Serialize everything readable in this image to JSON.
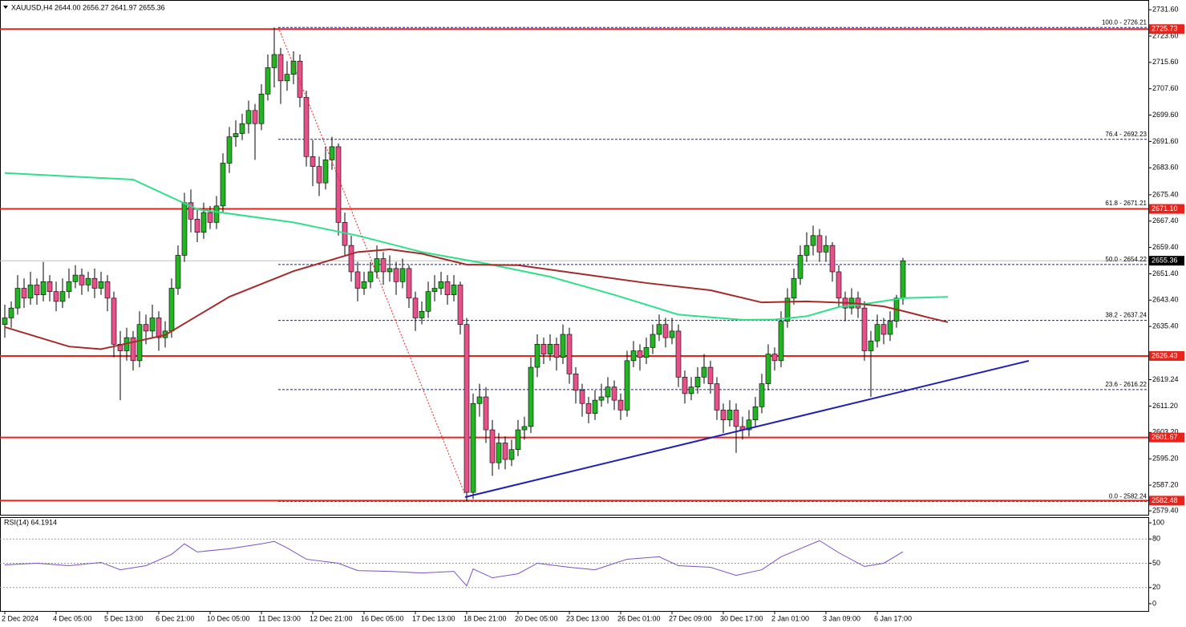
{
  "chart_data": {
    "type": "candlestick",
    "title": "XAUUSD,H4  2644.00 2656.27 2641.97 2655.36",
    "categories": [
      "2 Dec 2024",
      null,
      null,
      null,
      null,
      null,
      null,
      null,
      "4 Dec 05:00",
      null,
      null,
      null,
      null,
      null,
      null,
      null,
      "5 Dec 13:00",
      null,
      null,
      null,
      null,
      null,
      null,
      null,
      "6 Dec 21:00",
      null,
      null,
      null,
      null,
      null,
      null,
      null,
      "10 Dec 05:00",
      null,
      null,
      null,
      null,
      null,
      null,
      null,
      "11 Dec 13:00",
      null,
      null,
      null,
      null,
      null,
      null,
      null,
      "12 Dec 21:00",
      null,
      null,
      null,
      null,
      null,
      null,
      null,
      "16 Dec 05:00",
      null,
      null,
      null,
      null,
      null,
      null,
      null,
      "17 Dec 13:00",
      null,
      null,
      null,
      null,
      null,
      null,
      null,
      "18 Dec 21:00",
      null,
      null,
      null,
      null,
      null,
      null,
      null,
      "20 Dec 05:00",
      null,
      null,
      null,
      null,
      null,
      null,
      null,
      "23 Dec 13:00",
      null,
      null,
      null,
      null,
      null,
      null,
      null,
      "26 Dec 01:00",
      null,
      null,
      null,
      null,
      null,
      null,
      null,
      "27 Dec 09:00",
      null,
      null,
      null,
      null,
      null,
      null,
      null,
      "30 Dec 17:00",
      null,
      null,
      null,
      null,
      null,
      null,
      null,
      "2 Jan 01:00",
      null,
      null,
      null,
      null,
      null,
      null,
      null,
      "3 Jan 09:00",
      null,
      null,
      null,
      null,
      null,
      null,
      null,
      "6 Jan 17:00",
      null,
      null,
      null,
      null
    ],
    "candles": [
      [
        2636,
        2642,
        2632,
        2638
      ],
      [
        2638,
        2643,
        2635,
        2641
      ],
      [
        2641,
        2651,
        2639,
        2647
      ],
      [
        2647,
        2650,
        2641,
        2644
      ],
      [
        2644,
        2652,
        2642,
        2648
      ],
      [
        2648,
        2650,
        2642,
        2645
      ],
      [
        2645,
        2655,
        2643,
        2649
      ],
      [
        2649,
        2651,
        2643,
        2646
      ],
      [
        2646,
        2649,
        2640,
        2643
      ],
      [
        2643,
        2650,
        2641,
        2646
      ],
      [
        2646,
        2653,
        2644,
        2649
      ],
      [
        2649,
        2654,
        2647,
        2651
      ],
      [
        2651,
        2653,
        2645,
        2648
      ],
      [
        2648,
        2652,
        2646,
        2650
      ],
      [
        2650,
        2653,
        2644,
        2647
      ],
      [
        2647,
        2652,
        2645,
        2649
      ],
      [
        2649,
        2651,
        2640,
        2644
      ],
      [
        2644,
        2646,
        2626,
        2630
      ],
      [
        2630,
        2634,
        2613,
        2628
      ],
      [
        2628,
        2635,
        2625,
        2632
      ],
      [
        2632,
        2634,
        2622,
        2625
      ],
      [
        2625,
        2640,
        2623,
        2636
      ],
      [
        2636,
        2639,
        2630,
        2634
      ],
      [
        2634,
        2642,
        2632,
        2638
      ],
      [
        2638,
        2640,
        2628,
        2632
      ],
      [
        2632,
        2637,
        2629,
        2634
      ],
      [
        2634,
        2650,
        2632,
        2647
      ],
      [
        2647,
        2660,
        2645,
        2657
      ],
      [
        2657,
        2676,
        2655,
        2673
      ],
      [
        2673,
        2677,
        2664,
        2668
      ],
      [
        2668,
        2671,
        2661,
        2664
      ],
      [
        2664,
        2673,
        2662,
        2670
      ],
      [
        2670,
        2672,
        2665,
        2667
      ],
      [
        2667,
        2675,
        2665,
        2672
      ],
      [
        2672,
        2688,
        2670,
        2685
      ],
      [
        2685,
        2696,
        2682,
        2693
      ],
      [
        2693,
        2698,
        2690,
        2694
      ],
      [
        2694,
        2700,
        2692,
        2697
      ],
      [
        2697,
        2704,
        2694,
        2701
      ],
      [
        2701,
        2703,
        2686,
        2697
      ],
      [
        2697,
        2709,
        2695,
        2706
      ],
      [
        2706,
        2718,
        2704,
        2714
      ],
      [
        2714,
        2726.21,
        2708,
        2718
      ],
      [
        2718,
        2720,
        2703,
        2710
      ],
      [
        2710,
        2716,
        2707,
        2712
      ],
      [
        2712,
        2719,
        2709,
        2716
      ],
      [
        2716,
        2718,
        2702,
        2705
      ],
      [
        2705,
        2707,
        2684,
        2687
      ],
      [
        2687,
        2692,
        2678,
        2684
      ],
      [
        2684,
        2687,
        2675,
        2679
      ],
      [
        2679,
        2690,
        2677,
        2686
      ],
      [
        2686,
        2693,
        2683,
        2690
      ],
      [
        2690,
        2691,
        2663,
        2667
      ],
      [
        2667,
        2670,
        2657,
        2660
      ],
      [
        2660,
        2663,
        2649,
        2652
      ],
      [
        2652,
        2655,
        2643,
        2647
      ],
      [
        2647,
        2652,
        2645,
        2649
      ],
      [
        2649,
        2655,
        2647,
        2652
      ],
      [
        2652,
        2660,
        2650,
        2656
      ],
      [
        2656,
        2658,
        2648,
        2652
      ],
      [
        2652,
        2657,
        2649,
        2653
      ],
      [
        2653,
        2655,
        2645,
        2649
      ],
      [
        2649,
        2656,
        2647,
        2653
      ],
      [
        2653,
        2654,
        2641,
        2644
      ],
      [
        2644,
        2646,
        2634,
        2638
      ],
      [
        2638,
        2643,
        2636,
        2640
      ],
      [
        2640,
        2649,
        2638,
        2646
      ],
      [
        2646,
        2651,
        2643,
        2647
      ],
      [
        2647,
        2652,
        2645,
        2649
      ],
      [
        2649,
        2651,
        2642,
        2645
      ],
      [
        2645,
        2651,
        2643,
        2648
      ],
      [
        2648,
        2649,
        2633,
        2636
      ],
      [
        2636,
        2638,
        2582.24,
        2585
      ],
      [
        2585,
        2615,
        2583,
        2612
      ],
      [
        2612,
        2618,
        2608,
        2614
      ],
      [
        2614,
        2617,
        2600,
        2604
      ],
      [
        2604,
        2607,
        2590,
        2594
      ],
      [
        2594,
        2603,
        2592,
        2600
      ],
      [
        2600,
        2602,
        2592,
        2595
      ],
      [
        2595,
        2601,
        2593,
        2598
      ],
      [
        2598,
        2607,
        2596,
        2604
      ],
      [
        2604,
        2608,
        2601,
        2605
      ],
      [
        2605,
        2626,
        2603,
        2623
      ],
      [
        2623,
        2633,
        2620,
        2630
      ],
      [
        2630,
        2632,
        2624,
        2627
      ],
      [
        2627,
        2633,
        2625,
        2630
      ],
      [
        2630,
        2632,
        2622,
        2626
      ],
      [
        2626,
        2636,
        2624,
        2633
      ],
      [
        2633,
        2635,
        2618,
        2621
      ],
      [
        2621,
        2623,
        2612,
        2616
      ],
      [
        2616,
        2618,
        2608,
        2612
      ],
      [
        2612,
        2614,
        2606,
        2609
      ],
      [
        2609,
        2616,
        2607,
        2613
      ],
      [
        2613,
        2618,
        2611,
        2614
      ],
      [
        2614,
        2620,
        2612,
        2617
      ],
      [
        2617,
        2619,
        2610,
        2613
      ],
      [
        2613,
        2615,
        2607,
        2610
      ],
      [
        2610,
        2628,
        2608,
        2625
      ],
      [
        2625,
        2631,
        2623,
        2628
      ],
      [
        2628,
        2630,
        2622,
        2626
      ],
      [
        2626,
        2632,
        2624,
        2629
      ],
      [
        2629,
        2636,
        2627,
        2633
      ],
      [
        2633,
        2639,
        2631,
        2636
      ],
      [
        2636,
        2638,
        2629,
        2632
      ],
      [
        2632,
        2638,
        2630,
        2634
      ],
      [
        2634,
        2636,
        2617,
        2620
      ],
      [
        2620,
        2622,
        2612,
        2615
      ],
      [
        2615,
        2620,
        2613,
        2617
      ],
      [
        2617,
        2623,
        2615,
        2620
      ],
      [
        2620,
        2627,
        2618,
        2623
      ],
      [
        2623,
        2625,
        2615,
        2618
      ],
      [
        2618,
        2620,
        2607,
        2610
      ],
      [
        2610,
        2612,
        2603,
        2607
      ],
      [
        2607,
        2613,
        2605,
        2610
      ],
      [
        2610,
        2612,
        2597,
        2605
      ],
      [
        2605,
        2608,
        2601,
        2604
      ],
      [
        2604,
        2610,
        2602,
        2607
      ],
      [
        2607,
        2614,
        2605,
        2611
      ],
      [
        2611,
        2621,
        2609,
        2618
      ],
      [
        2618,
        2630,
        2616,
        2627
      ],
      [
        2627,
        2629,
        2622,
        2625
      ],
      [
        2625,
        2640,
        2623,
        2637
      ],
      [
        2637,
        2647,
        2635,
        2644
      ],
      [
        2644,
        2653,
        2642,
        2650
      ],
      [
        2650,
        2660,
        2648,
        2657
      ],
      [
        2657,
        2664,
        2655,
        2660
      ],
      [
        2660,
        2666,
        2657,
        2663
      ],
      [
        2663,
        2665,
        2655,
        2658
      ],
      [
        2658,
        2663,
        2655,
        2660
      ],
      [
        2660,
        2661,
        2649,
        2652
      ],
      [
        2652,
        2654,
        2641,
        2644
      ],
      [
        2644,
        2646,
        2637,
        2641
      ],
      [
        2641,
        2647,
        2639,
        2644
      ],
      [
        2644,
        2646,
        2638,
        2641
      ],
      [
        2641,
        2643,
        2625,
        2628
      ],
      [
        2628,
        2634,
        2614,
        2631
      ],
      [
        2631,
        2639,
        2629,
        2636
      ],
      [
        2636,
        2638,
        2630,
        2633
      ],
      [
        2633,
        2640,
        2631,
        2637
      ],
      [
        2637,
        2645,
        2635,
        2644
      ],
      [
        2644,
        2656.27,
        2641.97,
        2655.36
      ]
    ],
    "colors": {
      "up": "#22b422",
      "down": "#e8508a",
      "wick": "#000000"
    },
    "ylim": [
      2578.2,
      2734.56
    ],
    "yticks": [
      {
        "value": 2731.6,
        "label": "2731.60"
      },
      {
        "value": 2723.6,
        "label": "2723.60"
      },
      {
        "value": 2715.6,
        "label": "2715.60"
      },
      {
        "value": 2707.6,
        "label": "2707.60"
      },
      {
        "value": 2699.6,
        "label": "2699.60"
      },
      {
        "value": 2691.6,
        "label": "2691.60"
      },
      {
        "value": 2683.6,
        "label": "2683.60"
      },
      {
        "value": 2675.4,
        "label": "2675.40"
      },
      {
        "value": 2667.4,
        "label": "2667.40"
      },
      {
        "value": 2659.4,
        "label": "2659.40"
      },
      {
        "value": 2651.4,
        "label": "2651.40"
      },
      {
        "value": 2643.4,
        "label": "2643.40"
      },
      {
        "value": 2635.4,
        "label": "2635.40"
      },
      {
        "value": 2619.24,
        "label": "2619.24"
      },
      {
        "value": 2611.2,
        "label": "2611.20"
      },
      {
        "value": 2603.2,
        "label": "2603.20"
      },
      {
        "value": 2595.2,
        "label": "2595.20"
      },
      {
        "value": 2587.2,
        "label": "2587.20"
      },
      {
        "value": 2579.4,
        "label": "2579.40"
      }
    ],
    "grid": false,
    "moving_averages": [
      {
        "color": "#2ee08a",
        "x": [
          0,
          20,
          30,
          45,
          55,
          65,
          75,
          85,
          95,
          105,
          115,
          120,
          125,
          130,
          135,
          140,
          147
        ],
        "values": [
          2682,
          2680,
          2671,
          2667,
          2663,
          2658,
          2654.5,
          2650.5,
          2645,
          2639,
          2637.4,
          2637.5,
          2638.5,
          2641.3,
          2642.5,
          2644,
          2644.4
        ]
      },
      {
        "color": "#a52a2a",
        "x": [
          0,
          10,
          15,
          25,
          35,
          45,
          55,
          60,
          65,
          72,
          80,
          90,
          100,
          110,
          118,
          125,
          132,
          137,
          140,
          144,
          147
        ],
        "values": [
          2635.2,
          2629.3,
          2628.5,
          2632.8,
          2644.4,
          2652.2,
          2658,
          2658.8,
          2657.5,
          2654.2,
          2654,
          2651.3,
          2648.6,
          2646.4,
          2642.7,
          2643,
          2642.5,
          2641.5,
          2640.1,
          2638.1,
          2636.7
        ]
      }
    ],
    "levels": [
      {
        "value": 2725.73,
        "label": "2725.73"
      },
      {
        "value": 2671.1,
        "label": "2671.10"
      },
      {
        "value": 2626.43,
        "label": "2626.43"
      },
      {
        "value": 2601.67,
        "label": "2601.67"
      },
      {
        "value": 2582.48,
        "label": "2582.48"
      }
    ],
    "level_color": "#e8231c",
    "fib_levels": [
      {
        "value": 2726.21,
        "label": "100.0 - 2726.21"
      },
      {
        "value": 2692.23,
        "label": "76.4 - 2692.23"
      },
      {
        "value": 2671.21,
        "label": "61.8 - 2671.21"
      },
      {
        "value": 2654.22,
        "label": "50.0 - 2654.22"
      },
      {
        "value": 2637.24,
        "label": "38.2 - 2637.24"
      },
      {
        "value": 2616.22,
        "label": "23.6 - 2616.22"
      },
      {
        "value": 2582.24,
        "label": "0.0 - 2582.24"
      }
    ],
    "fib_color": "#1a1aa0",
    "current_price": {
      "value": 2655.36,
      "label": "2655.36"
    },
    "indicator": {
      "title": "RSI(14) 64.1914",
      "color": "#7a50c8",
      "x": [
        0,
        5,
        10,
        15,
        18,
        22,
        26,
        28,
        30,
        35,
        40,
        42,
        44,
        47,
        52,
        55,
        60,
        65,
        70,
        72,
        73,
        76,
        80,
        83,
        88,
        92,
        97,
        102,
        105,
        110,
        114,
        118,
        121,
        124,
        127,
        130,
        134,
        137,
        140
      ],
      "values": [
        48,
        50,
        47,
        51,
        42,
        47,
        61,
        74,
        64,
        68,
        74,
        77,
        69,
        55,
        50,
        41,
        40,
        38,
        40,
        22,
        43,
        32,
        37,
        50,
        45,
        42,
        55,
        58,
        47,
        45,
        35,
        42,
        58,
        68,
        78,
        63,
        46,
        50,
        64.19
      ],
      "ylim": [
        -9,
        107
      ],
      "yticks": [
        100,
        80,
        50,
        20,
        0
      ],
      "levels": [
        80,
        50,
        20
      ]
    }
  }
}
